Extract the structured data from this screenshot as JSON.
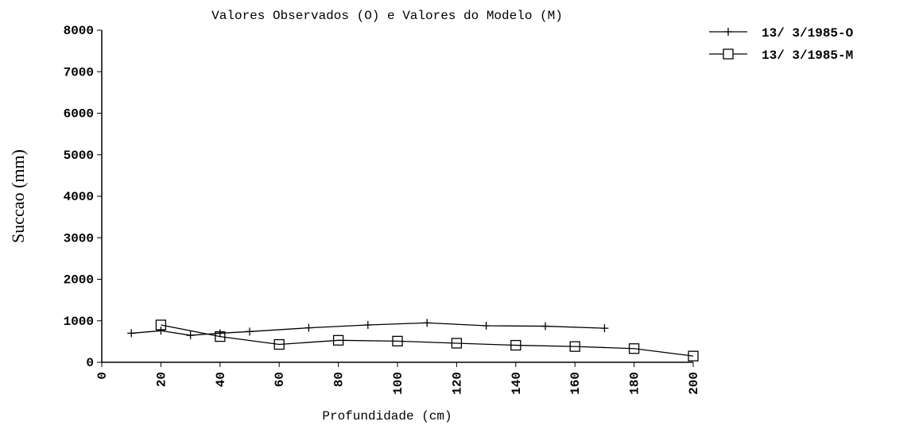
{
  "chart_data": {
    "type": "line",
    "title": "Valores Observados (O) e Valores do Modelo (M)",
    "xlabel": "Profundidade (cm)",
    "ylabel": "Succao (mm)",
    "xlim": [
      0,
      200
    ],
    "xticks": [
      0,
      20,
      40,
      60,
      80,
      100,
      120,
      140,
      160,
      180,
      200
    ],
    "ylim": [
      0,
      8000
    ],
    "yticks": [
      0,
      1000,
      2000,
      3000,
      4000,
      5000,
      6000,
      7000,
      8000
    ],
    "legend": "upper right",
    "series": [
      {
        "name": "13/ 3/1985-O",
        "color": "#000000",
        "marker": "plus",
        "x": [
          10,
          20,
          30,
          40,
          50,
          70,
          90,
          110,
          130,
          150,
          170
        ],
        "values": [
          700,
          760,
          650,
          700,
          740,
          830,
          900,
          950,
          880,
          870,
          820
        ]
      },
      {
        "name": "13/ 3/1985-M",
        "color": "#000000",
        "marker": "square",
        "x": [
          20,
          40,
          60,
          80,
          100,
          120,
          140,
          160,
          180,
          200
        ],
        "values": [
          900,
          620,
          430,
          530,
          510,
          460,
          410,
          380,
          330,
          150
        ]
      }
    ]
  }
}
